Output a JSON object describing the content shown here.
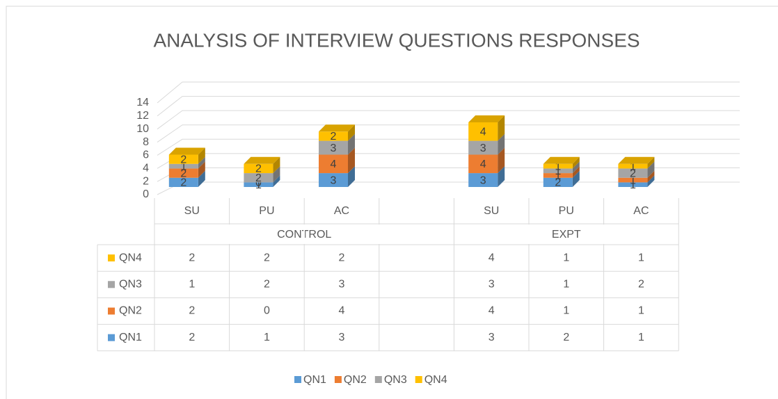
{
  "chart_data": {
    "type": "bar3d_stacked",
    "title": "ANALYSIS OF INTERVIEW QUESTIONS RESPONSES",
    "categories": [
      "SU",
      "PU",
      "AC",
      null,
      "SU",
      "PU",
      "AC"
    ],
    "category_groups": [
      "CONTROL",
      "CONTROL",
      "CONTROL",
      "CONTROL",
      "EXPT",
      "EXPT",
      "EXPT"
    ],
    "series": [
      {
        "name": "QN1",
        "color": "#5b9bd5",
        "values": [
          2,
          1,
          3,
          null,
          3,
          2,
          1
        ]
      },
      {
        "name": "QN2",
        "color": "#ed7d31",
        "values": [
          2,
          0,
          4,
          null,
          4,
          1,
          1
        ]
      },
      {
        "name": "QN3",
        "color": "#a5a5a5",
        "values": [
          1,
          2,
          3,
          null,
          3,
          1,
          2
        ]
      },
      {
        "name": "QN4",
        "color": "#ffc000",
        "values": [
          2,
          2,
          2,
          null,
          4,
          1,
          1
        ]
      }
    ],
    "ylim": [
      0,
      14
    ],
    "yticks": [
      0,
      2,
      4,
      6,
      8,
      10,
      12,
      14
    ],
    "grid": true,
    "data_table": true,
    "legend": "bottom"
  }
}
